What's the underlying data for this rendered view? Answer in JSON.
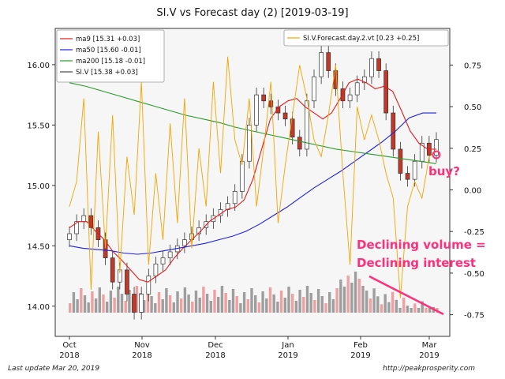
{
  "title": "SI.V vs Forecast day (2)  [2019-03-19]",
  "footer": {
    "left": "Last update Mar 20, 2019",
    "right": "http://peakprosperity.com"
  },
  "colors": {
    "ma9": "#e41a1c",
    "ma50": "#2020e0",
    "ma200": "#2a9a2a",
    "siv": "#444444",
    "forecast": "#f0a500",
    "annotation": "#ff2f7a",
    "candle_up": "#ffffff",
    "candle_down": "#c0392b",
    "volume_up": "#9e9e9e",
    "volume_down": "#f0a0a0"
  },
  "chart_data": {
    "type": "line",
    "title": "SI.V vs Forecast day (2)  [2019-03-19]",
    "x_ticks": [
      "Oct\n2018",
      "Nov\n2018",
      "Dec\n2018",
      "Jan\n2019",
      "Feb\n2019",
      "Mar\n2019"
    ],
    "y_left": {
      "ticks": [
        "14.00",
        "14.50",
        "15.00",
        "15.50",
        "16.00"
      ],
      "range": [
        13.75,
        16.3
      ]
    },
    "y_right": {
      "ticks": [
        "-0.75",
        "-0.50",
        "-0.25",
        "0.00",
        "0.25",
        "0.50",
        "0.75"
      ],
      "range": [
        -0.88,
        0.97
      ]
    },
    "legend_left": [
      "ma9 [15.31 +0.03]",
      "ma50 [15.60 -0.01]",
      "ma200 [15.18 -0.01]",
      "SI.V [15.38 +0.03]"
    ],
    "legend_right": [
      "SI.V.Forecast.day.2.vt [0.23 +0.25]"
    ],
    "annotations": [
      "buy?",
      "Declining volume =",
      "Declining interest"
    ],
    "series": [
      {
        "name": "ma9 [15.31 +0.03]",
        "values": [
          14.65,
          14.7,
          14.7,
          14.62,
          14.55,
          14.45,
          14.38,
          14.3,
          14.22,
          14.2,
          14.25,
          14.3,
          14.4,
          14.48,
          14.55,
          14.62,
          14.7,
          14.75,
          14.8,
          14.82,
          14.88,
          15.05,
          15.3,
          15.55,
          15.65,
          15.7,
          15.72,
          15.65,
          15.6,
          15.55,
          15.6,
          15.72,
          15.85,
          15.88,
          15.85,
          15.8,
          15.82,
          15.78,
          15.62,
          15.45,
          15.35,
          15.3,
          15.3
        ]
      },
      {
        "name": "ma50 [15.60 -0.01]",
        "values": [
          14.5,
          14.48,
          14.47,
          14.46,
          14.44,
          14.43,
          14.44,
          14.46,
          14.48,
          14.5,
          14.52,
          14.55,
          14.58,
          14.62,
          14.68,
          14.75,
          14.82,
          14.9,
          14.98,
          15.05,
          15.12,
          15.2,
          15.28,
          15.36,
          15.45,
          15.56,
          15.6,
          15.6
        ]
      },
      {
        "name": "ma200 [15.18 -0.01]",
        "values": [
          15.85,
          15.82,
          15.78,
          15.74,
          15.7,
          15.66,
          15.62,
          15.58,
          15.55,
          15.52,
          15.48,
          15.45,
          15.42,
          15.39,
          15.36,
          15.33,
          15.3,
          15.28,
          15.26,
          15.24,
          15.22,
          15.2,
          15.18
        ]
      },
      {
        "name": "SI.V [15.38 +0.03]",
        "closes": [
          14.6,
          14.7,
          14.75,
          14.65,
          14.55,
          14.4,
          14.2,
          14.3,
          14.1,
          13.95,
          14.1,
          14.25,
          14.35,
          14.4,
          14.45,
          14.5,
          14.55,
          14.6,
          14.65,
          14.7,
          14.75,
          14.8,
          14.85,
          14.95,
          15.2,
          15.5,
          15.75,
          15.7,
          15.65,
          15.6,
          15.55,
          15.4,
          15.3,
          15.7,
          15.9,
          16.1,
          15.95,
          15.8,
          15.7,
          15.75,
          15.85,
          15.9,
          16.05,
          15.95,
          15.6,
          15.3,
          15.1,
          15.05,
          15.2,
          15.35,
          15.25,
          15.38
        ]
      },
      {
        "name": "SI.V.Forecast.day.2.vt [0.23 +0.25]",
        "axis": "right",
        "values": [
          -0.1,
          0.05,
          0.55,
          -0.6,
          0.35,
          -0.35,
          0.45,
          -0.5,
          0.2,
          -0.15,
          0.65,
          -0.45,
          0.1,
          -0.3,
          0.4,
          -0.2,
          0.55,
          -0.35,
          0.25,
          -0.1,
          0.65,
          0.1,
          0.8,
          0.3,
          0.15,
          0.55,
          -0.1,
          0.25,
          0.65,
          -0.2,
          0.15,
          0.45,
          0.75,
          0.55,
          0.3,
          0.2,
          0.45,
          0.75,
          0.1,
          -0.45,
          0.5,
          0.3,
          0.45,
          0.3,
          0.1,
          -0.05,
          -0.65,
          -0.1,
          0.05,
          -0.05,
          0.2,
          0.23
        ]
      }
    ],
    "volume_bars": "declining into March"
  }
}
